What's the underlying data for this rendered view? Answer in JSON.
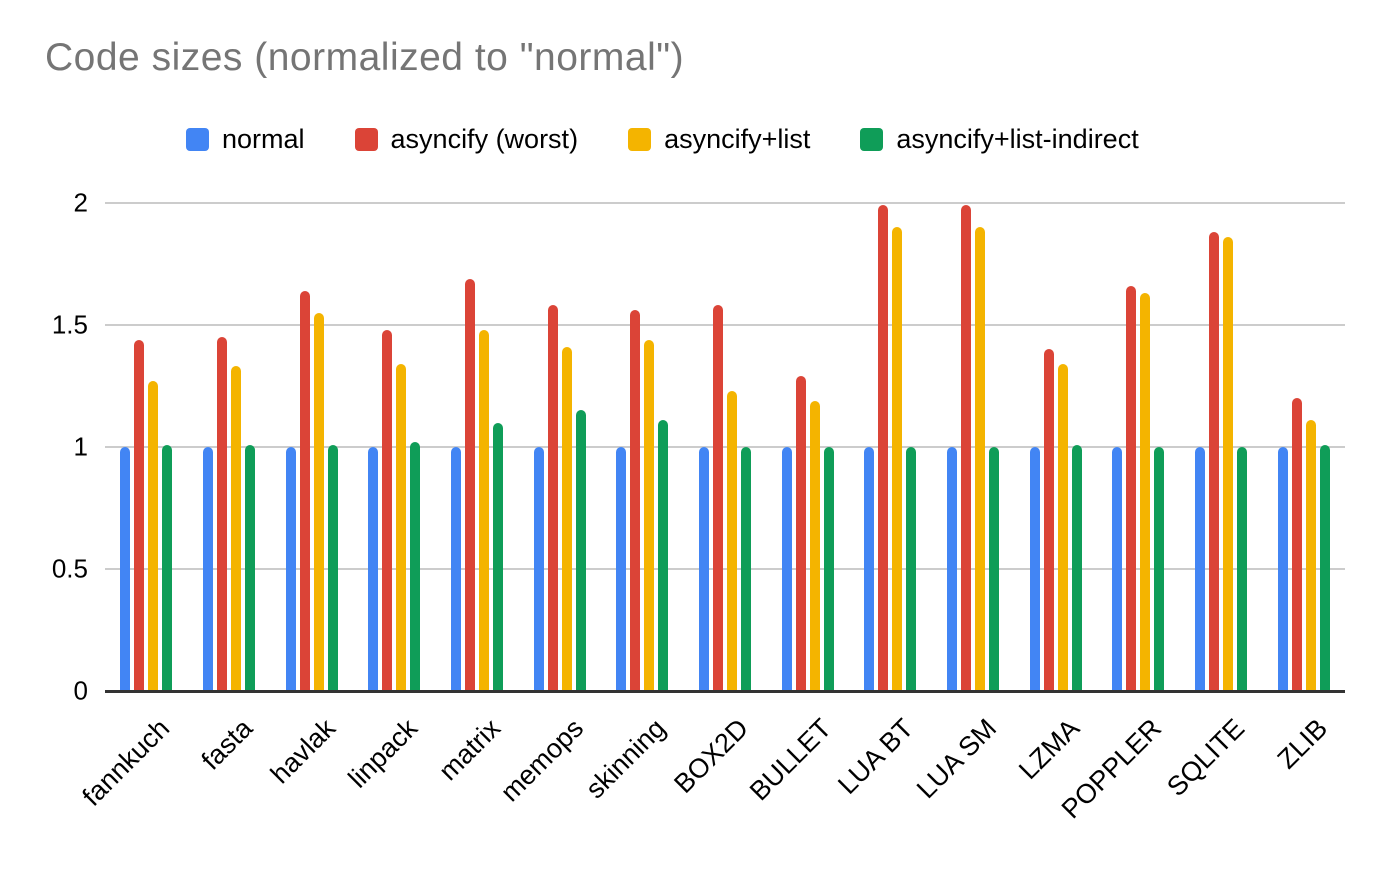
{
  "title": "Code sizes (normalized to \"normal\")",
  "colors": {
    "title_text": "#757575",
    "axis_text": "#000000",
    "gridline": "#cccccc",
    "baseline": "#333333",
    "background": "#ffffff"
  },
  "y_axis": {
    "ticks": [
      {
        "label": "2",
        "value": 2.0
      },
      {
        "label": "1.5",
        "value": 1.5
      },
      {
        "label": "1",
        "value": 1.0
      },
      {
        "label": "0.5",
        "value": 0.5
      },
      {
        "label": "0",
        "value": 0.0
      }
    ]
  },
  "chart_data": {
    "type": "bar",
    "title": "Code sizes (normalized to \"normal\")",
    "categories": [
      "fannkuch",
      "fasta",
      "havlak",
      "linpack",
      "matrix",
      "memops",
      "skinning",
      "BOX2D",
      "BULLET",
      "LUA BT",
      "LUA SM",
      "LZMA",
      "POPPLER",
      "SQLITE",
      "ZLIB"
    ],
    "series": [
      {
        "name": "normal",
        "color": "#4285F4",
        "values": [
          1.0,
          1.0,
          1.0,
          1.0,
          1.0,
          1.0,
          1.0,
          1.0,
          1.0,
          1.0,
          1.0,
          1.0,
          1.0,
          1.0,
          1.0
        ]
      },
      {
        "name": "asyncify (worst)",
        "color": "#DB4437",
        "values": [
          1.44,
          1.45,
          1.64,
          1.48,
          1.69,
          1.58,
          1.56,
          1.58,
          1.29,
          1.99,
          1.99,
          1.4,
          1.66,
          1.88,
          1.2
        ]
      },
      {
        "name": "asyncify+list",
        "color": "#F4B400",
        "values": [
          1.27,
          1.33,
          1.55,
          1.34,
          1.48,
          1.41,
          1.44,
          1.23,
          1.19,
          1.9,
          1.9,
          1.34,
          1.63,
          1.86,
          1.11
        ]
      },
      {
        "name": "asyncify+list-indirect",
        "color": "#0F9D58",
        "values": [
          1.01,
          1.01,
          1.01,
          1.02,
          1.1,
          1.15,
          1.11,
          1.0,
          1.0,
          1.0,
          1.0,
          1.01,
          1.0,
          1.0,
          1.01
        ]
      }
    ],
    "ylim": [
      0,
      2
    ],
    "yticks": [
      0,
      0.5,
      1,
      1.5,
      2
    ],
    "grid": "horizontal",
    "legend_position": "top",
    "x_label_rotation": -45
  }
}
